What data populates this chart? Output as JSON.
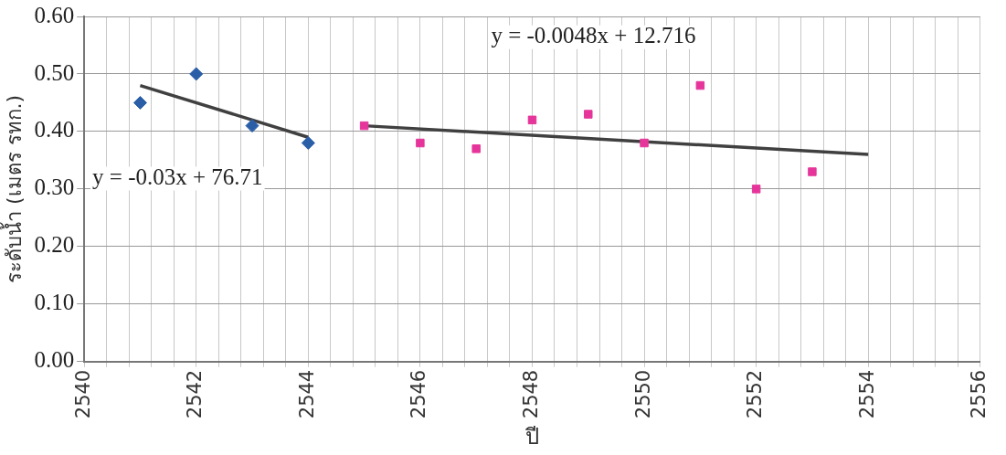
{
  "chart_data": {
    "type": "scatter",
    "xlabel": "ปี",
    "ylabel": "ระดับน้ำ (เมตร รทก.)",
    "series": [
      {
        "marker": "diamond",
        "color": "#2a5fa8",
        "x": [
          2541,
          2542,
          2543,
          2544
        ],
        "values": [
          0.45,
          0.5,
          0.41,
          0.38
        ]
      },
      {
        "marker": "square",
        "color": "#e6359a",
        "x": [
          2545,
          2546,
          2547,
          2548,
          2549,
          2550,
          2551,
          2552,
          2553
        ],
        "values": [
          0.41,
          0.38,
          0.37,
          0.42,
          0.43,
          0.38,
          0.48,
          0.3,
          0.33
        ]
      },
      {
        "type": "line",
        "marker": "none",
        "color": "#404040",
        "x": [
          2541,
          2544
        ],
        "values": [
          0.48,
          0.39
        ]
      },
      {
        "type": "line",
        "marker": "none",
        "color": "#404040",
        "x": [
          2545,
          2554
        ],
        "values": [
          0.41,
          0.36
        ]
      }
    ],
    "xlim": [
      2540,
      2556
    ],
    "xticks": [
      2540,
      {
        "value": 2540.4,
        "label": null
      },
      {
        "value": 2540.8,
        "label": null
      },
      {
        "value": 2541.2,
        "label": null
      },
      {
        "value": 2541.6,
        "label": null
      },
      2542,
      {
        "value": 2542.4,
        "label": null
      },
      {
        "value": 2542.8,
        "label": null
      },
      {
        "value": 2543.2,
        "label": null
      },
      {
        "value": 2543.6,
        "label": null
      },
      2544,
      {
        "value": 2544.4,
        "label": null
      },
      {
        "value": 2544.8,
        "label": null
      },
      {
        "value": 2545.2,
        "label": null
      },
      {
        "value": 2545.6,
        "label": null
      },
      2546,
      {
        "value": 2546.4,
        "label": null
      },
      {
        "value": 2546.8,
        "label": null
      },
      {
        "value": 2547.2,
        "label": null
      },
      {
        "value": 2547.6,
        "label": null
      },
      2548,
      {
        "value": 2548.4,
        "label": null
      },
      {
        "value": 2548.8,
        "label": null
      },
      {
        "value": 2549.2,
        "label": null
      },
      {
        "value": 2549.6,
        "label": null
      },
      2550,
      {
        "value": 2550.4,
        "label": null
      },
      {
        "value": 2550.8,
        "label": null
      },
      {
        "value": 2551.2,
        "label": null
      },
      {
        "value": 2551.6,
        "label": null
      },
      2552,
      {
        "value": 2552.4,
        "label": null
      },
      {
        "value": 2552.8,
        "label": null
      },
      {
        "value": 2553.2,
        "label": null
      },
      {
        "value": 2553.6,
        "label": null
      },
      2554,
      {
        "value": 2554.4,
        "label": null
      },
      {
        "value": 2554.8,
        "label": null
      },
      {
        "value": 2555.2,
        "label": null
      },
      {
        "value": 2555.6,
        "label": null
      },
      2556
    ],
    "ylim": [
      0,
      0.6
    ],
    "yticks": [
      {
        "value": 0,
        "label": "0.00"
      },
      {
        "value": 0.1,
        "label": "0.10"
      },
      {
        "value": 0.2,
        "label": "0.20"
      },
      {
        "value": 0.3,
        "label": "0.30"
      },
      {
        "value": 0.4,
        "label": "0.40"
      },
      {
        "value": 0.5,
        "label": "0.50"
      },
      {
        "value": 0.6,
        "label": "0.60"
      }
    ],
    "grid": true,
    "legend": false,
    "annotations": [
      "y = -0.03x + 76.71",
      "y = -0.0048x + 12.716"
    ]
  }
}
